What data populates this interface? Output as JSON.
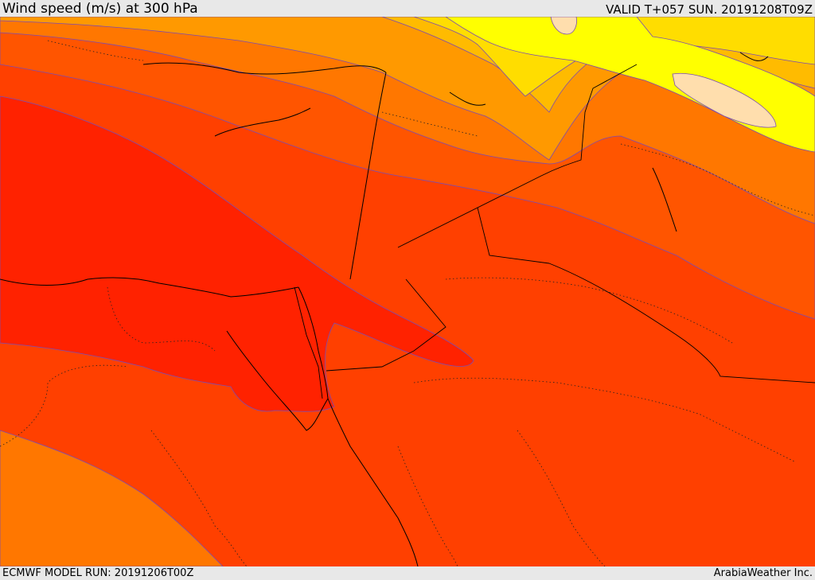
{
  "header": {
    "title": "Wind speed (m/s) at 300 hPa",
    "valid": "VALID T+057 SUN. 20191208T09Z"
  },
  "footer": {
    "model_run": "ECMWF MODEL RUN: 20191206T00Z",
    "credit": "ArabiaWeather Inc."
  },
  "colors": {
    "band_lightest": "#ffdead",
    "band_yellow_bright": "#ffff00",
    "band_yellow": "#ffdd00",
    "band_gold": "#ffbb00",
    "band_amber": "#ff9900",
    "band_orange": "#ff7700",
    "band_orange_red": "#ff5500",
    "band_red_orange": "#ff4000",
    "band_red": "#ff2200",
    "contour_line": "#7b4bb3",
    "coastline": "#000000"
  }
}
